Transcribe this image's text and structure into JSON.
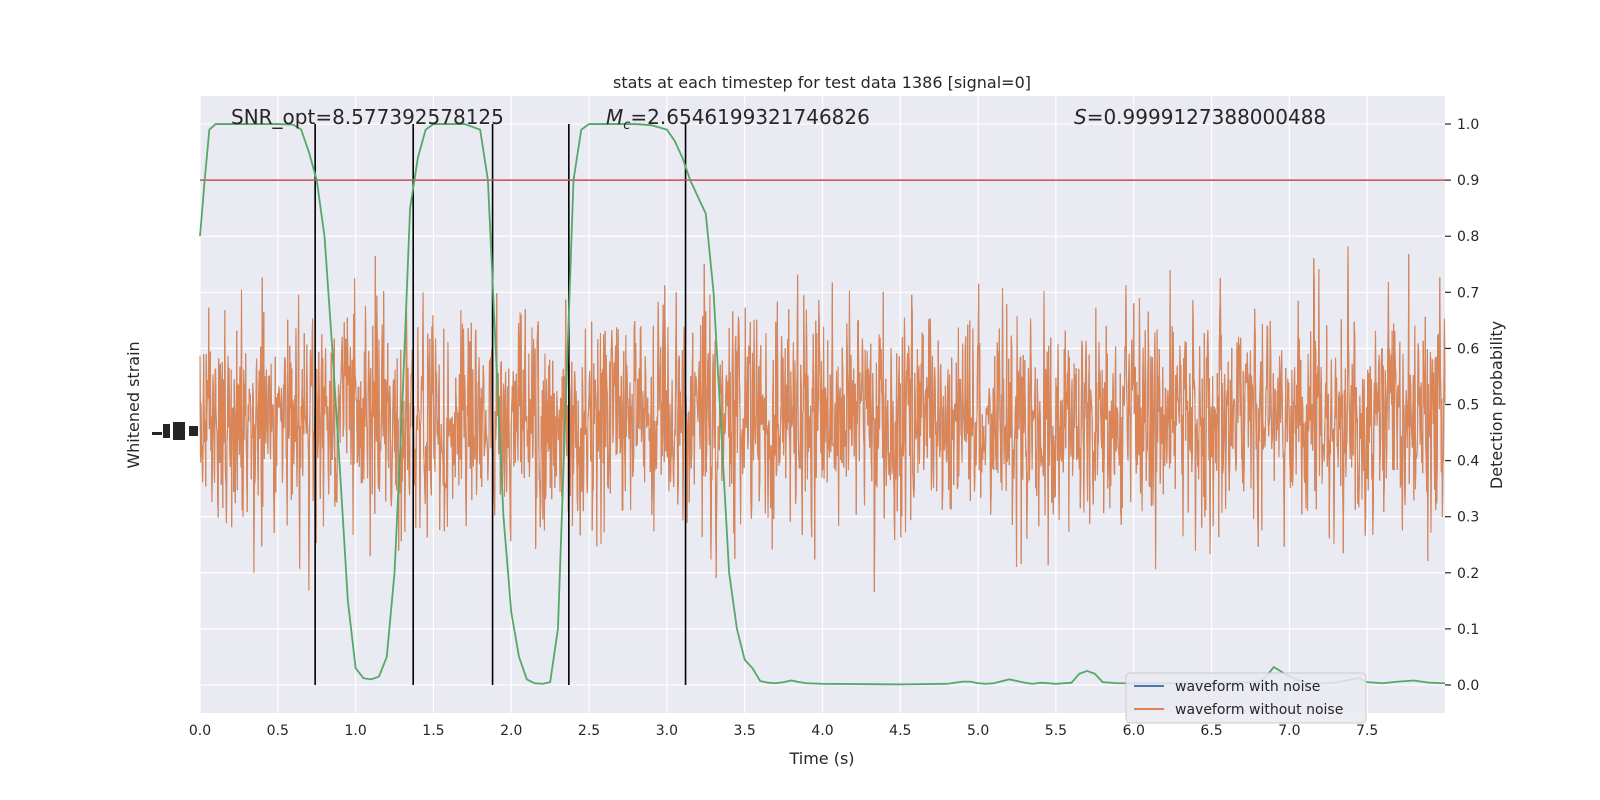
{
  "chart_data": {
    "type": "line",
    "title": "stats at each timestep for test data 1386 [signal=0]",
    "xlabel": "Time (s)",
    "ylabel_left": "Whitened strain",
    "ylabel_right": "Detection probability",
    "xlim": [
      0.0,
      8.0
    ],
    "right_ylim": [
      -0.05,
      1.05
    ],
    "x_ticks": [
      "0.0",
      "0.5",
      "1.0",
      "1.5",
      "2.0",
      "2.5",
      "3.0",
      "3.5",
      "4.0",
      "4.5",
      "5.0",
      "5.5",
      "6.0",
      "6.5",
      "7.0",
      "7.5"
    ],
    "right_y_ticks": [
      "0.0",
      "0.1",
      "0.2",
      "0.3",
      "0.4",
      "0.5",
      "0.6",
      "0.7",
      "0.8",
      "0.9",
      "1.0"
    ],
    "grid": true,
    "legend_position": "lower-right",
    "annotations": {
      "snr": "SNR_opt=8.577392578125",
      "mc_symbol": "M",
      "mc_sub": "c",
      "mc_value": "=2.6546199321746826",
      "s_symbol": "S",
      "s_value": "=0.9999127388000488"
    },
    "threshold": 0.9,
    "vertical_lines": [
      0.74,
      1.37,
      1.88,
      2.37,
      3.12
    ],
    "series": [
      {
        "name": "waveform with noise",
        "color": "#4c72b0",
        "kind": "strain"
      },
      {
        "name": "waveform without noise",
        "color": "#dd8452",
        "kind": "strain"
      },
      {
        "color": "#55a868",
        "kind": "probability",
        "x": [
          0.0,
          0.03,
          0.06,
          0.1,
          0.2,
          0.3,
          0.4,
          0.5,
          0.6,
          0.65,
          0.7,
          0.75,
          0.8,
          0.85,
          0.9,
          0.95,
          1.0,
          1.05,
          1.1,
          1.15,
          1.2,
          1.25,
          1.3,
          1.35,
          1.4,
          1.45,
          1.5,
          1.55,
          1.6,
          1.7,
          1.8,
          1.85,
          1.9,
          1.95,
          2.0,
          2.05,
          2.1,
          2.15,
          2.2,
          2.25,
          2.3,
          2.35,
          2.4,
          2.45,
          2.5,
          2.55,
          2.6,
          2.7,
          2.8,
          2.9,
          3.0,
          3.05,
          3.1,
          3.15,
          3.2,
          3.25,
          3.3,
          3.35,
          3.4,
          3.45,
          3.5,
          3.55,
          3.6,
          3.65,
          3.7,
          3.75,
          3.8,
          3.85,
          3.9,
          4.0,
          4.5,
          4.8,
          4.85,
          4.9,
          4.95,
          5.0,
          5.05,
          5.1,
          5.2,
          5.3,
          5.35,
          5.4,
          5.5,
          5.6,
          5.65,
          5.7,
          5.75,
          5.8,
          5.9,
          6.0,
          6.5,
          6.8,
          6.85,
          6.9,
          7.0,
          7.1,
          7.2,
          7.3,
          7.4,
          7.45,
          7.5,
          7.6,
          7.7,
          7.8,
          7.9,
          8.0
        ],
        "y": [
          0.8,
          0.9,
          0.99,
          1.0,
          1.0,
          1.0,
          1.0,
          1.0,
          0.999,
          0.99,
          0.95,
          0.9,
          0.8,
          0.6,
          0.38,
          0.15,
          0.03,
          0.012,
          0.01,
          0.015,
          0.05,
          0.2,
          0.5,
          0.85,
          0.94,
          0.99,
          1.0,
          1.0,
          1.0,
          1.0,
          0.99,
          0.9,
          0.6,
          0.3,
          0.13,
          0.05,
          0.01,
          0.003,
          0.002,
          0.005,
          0.1,
          0.5,
          0.9,
          0.99,
          1.0,
          1.0,
          1.0,
          1.0,
          1.0,
          0.998,
          0.99,
          0.97,
          0.94,
          0.9,
          0.87,
          0.84,
          0.7,
          0.45,
          0.2,
          0.1,
          0.045,
          0.03,
          0.007,
          0.004,
          0.003,
          0.005,
          0.008,
          0.005,
          0.003,
          0.002,
          0.001,
          0.002,
          0.004,
          0.006,
          0.006,
          0.003,
          0.002,
          0.003,
          0.01,
          0.004,
          0.002,
          0.004,
          0.002,
          0.004,
          0.02,
          0.025,
          0.02,
          0.005,
          0.003,
          0.003,
          0.003,
          0.005,
          0.015,
          0.032,
          0.015,
          0.004,
          0.003,
          0.004,
          0.01,
          0.012,
          0.005,
          0.003,
          0.006,
          0.008,
          0.004,
          0.003
        ]
      }
    ]
  }
}
